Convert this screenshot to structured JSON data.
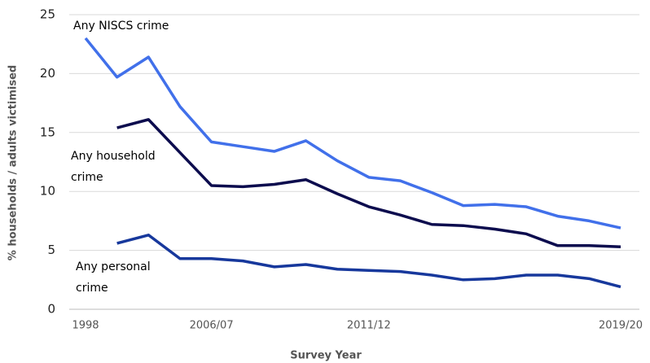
{
  "chart_data": {
    "type": "line",
    "xlabel": "Survey Year",
    "ylabel": "% households / adults victimised",
    "categories": [
      "1998",
      null,
      null,
      null,
      "2006/07",
      null,
      null,
      null,
      null,
      "2011/12",
      null,
      null,
      null,
      null,
      null,
      null,
      null,
      "2019/20"
    ],
    "series": [
      {
        "name": "Any NISCS crime",
        "color": "#4170ea",
        "values": [
          23.0,
          19.7,
          21.4,
          17.2,
          14.2,
          13.8,
          13.4,
          14.3,
          12.6,
          11.2,
          10.9,
          9.9,
          8.8,
          8.9,
          8.7,
          7.9,
          7.5,
          6.9
        ]
      },
      {
        "name": "Any household crime",
        "color": "#0c0c4e",
        "values": [
          null,
          15.4,
          16.1,
          13.3,
          10.5,
          10.4,
          10.6,
          11.0,
          9.8,
          8.7,
          8.0,
          7.2,
          7.1,
          6.8,
          6.4,
          5.4,
          5.4,
          5.3
        ]
      },
      {
        "name": "Any personal crime",
        "color": "#17389c",
        "values": [
          null,
          5.6,
          6.3,
          4.3,
          4.3,
          4.1,
          3.6,
          3.8,
          3.4,
          3.3,
          3.2,
          2.9,
          2.5,
          2.6,
          2.9,
          2.9,
          2.6,
          1.9
        ]
      }
    ],
    "ylim": [
      0,
      25
    ],
    "yticks": [
      0,
      5,
      10,
      15,
      20,
      25
    ],
    "grid": true
  }
}
